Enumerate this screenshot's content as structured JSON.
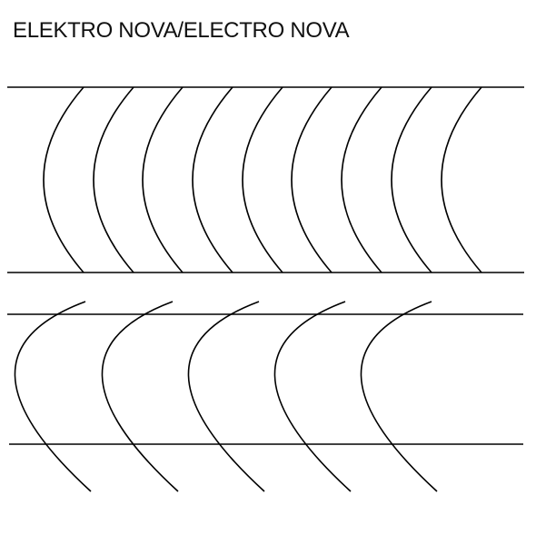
{
  "title": "ELEKTRO NOVA/ELECTRO NOVA",
  "colors": {
    "background": "#ffffff",
    "ink": "#000000"
  }
}
